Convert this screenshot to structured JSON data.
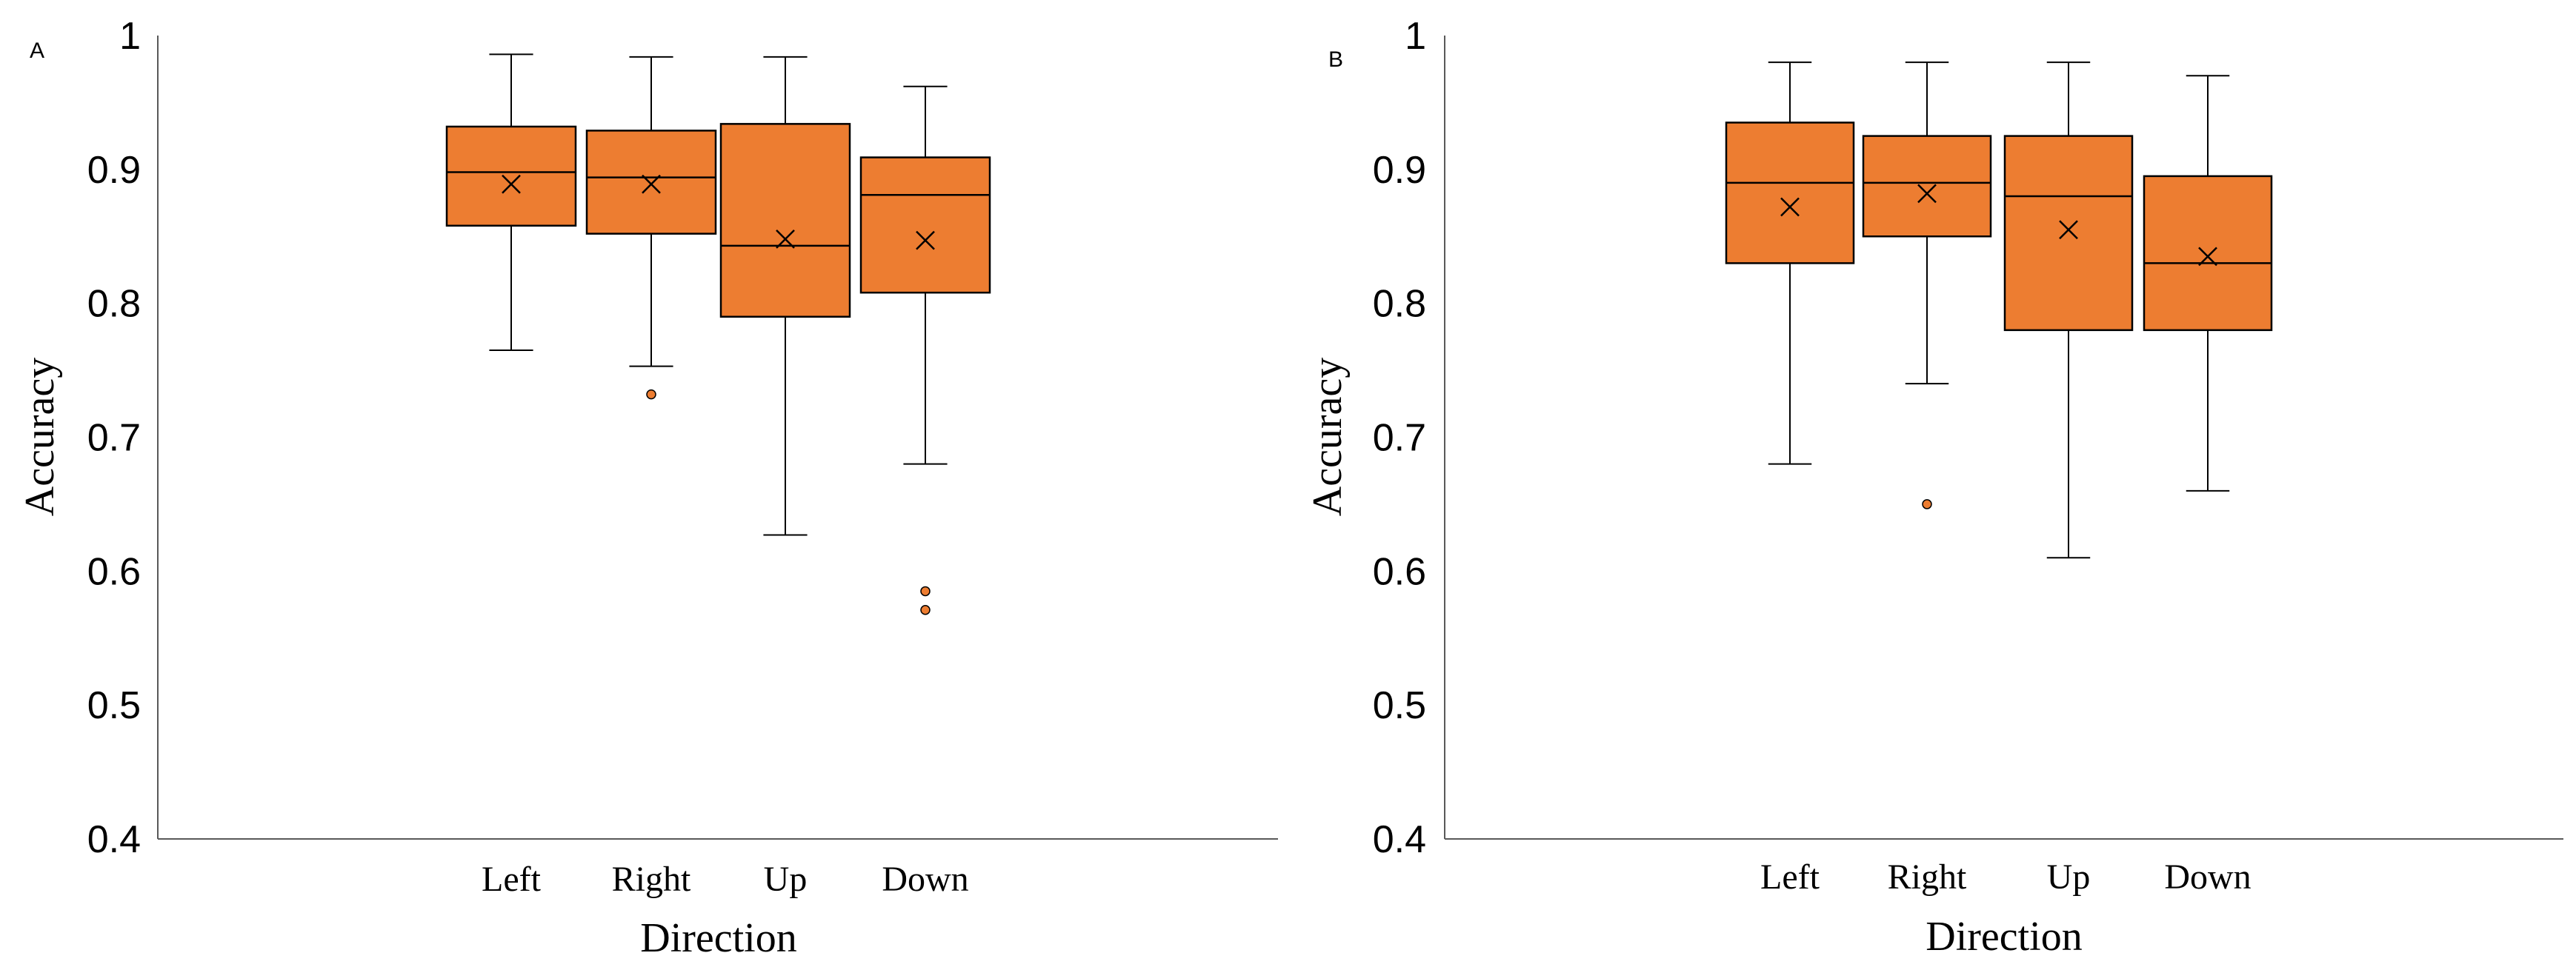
{
  "chart_data": [
    {
      "type": "box",
      "panel_label": "A",
      "title": "",
      "xlabel": "Direction",
      "ylabel": "Accuracy",
      "ylim": [
        0.4,
        1.0
      ],
      "yticks": [
        "0.4",
        "0.5",
        "0.6",
        "0.7",
        "0.8",
        "0.9",
        "1"
      ],
      "categories": [
        "Left",
        "Right",
        "Up",
        "Down"
      ],
      "color": "#ED7D31",
      "grid": false,
      "boxes": [
        {
          "category": "Left",
          "min": 0.765,
          "q1": 0.858,
          "median": 0.898,
          "q3": 0.932,
          "max": 0.986,
          "mean": 0.889,
          "outliers": []
        },
        {
          "category": "Right",
          "min": 0.753,
          "q1": 0.852,
          "median": 0.894,
          "q3": 0.929,
          "max": 0.984,
          "mean": 0.889,
          "outliers": [
            0.732
          ]
        },
        {
          "category": "Up",
          "min": 0.627,
          "q1": 0.79,
          "median": 0.843,
          "q3": 0.934,
          "max": 0.984,
          "mean": 0.848,
          "outliers": []
        },
        {
          "category": "Down",
          "min": 0.68,
          "q1": 0.808,
          "median": 0.881,
          "q3": 0.909,
          "max": 0.962,
          "mean": 0.847,
          "outliers": [
            0.585,
            0.571
          ]
        }
      ]
    },
    {
      "type": "box",
      "panel_label": "B",
      "title": "",
      "xlabel": "Direction",
      "ylabel": "Accuracy",
      "ylim": [
        0.4,
        1.0
      ],
      "yticks": [
        "0.4",
        "0.5",
        "0.6",
        "0.7",
        "0.8",
        "0.9",
        "1"
      ],
      "categories": [
        "Left",
        "Right",
        "Up",
        "Down"
      ],
      "color": "#ED7D31",
      "grid": false,
      "boxes": [
        {
          "category": "Left",
          "min": 0.68,
          "q1": 0.83,
          "median": 0.89,
          "q3": 0.935,
          "max": 0.98,
          "mean": 0.872,
          "outliers": []
        },
        {
          "category": "Right",
          "min": 0.74,
          "q1": 0.85,
          "median": 0.89,
          "q3": 0.925,
          "max": 0.98,
          "mean": 0.882,
          "outliers": [
            0.65
          ]
        },
        {
          "category": "Up",
          "min": 0.61,
          "q1": 0.78,
          "median": 0.88,
          "q3": 0.925,
          "max": 0.98,
          "mean": 0.855,
          "outliers": []
        },
        {
          "category": "Down",
          "min": 0.66,
          "q1": 0.78,
          "median": 0.83,
          "q3": 0.895,
          "max": 0.97,
          "mean": 0.835,
          "outliers": []
        }
      ]
    }
  ]
}
